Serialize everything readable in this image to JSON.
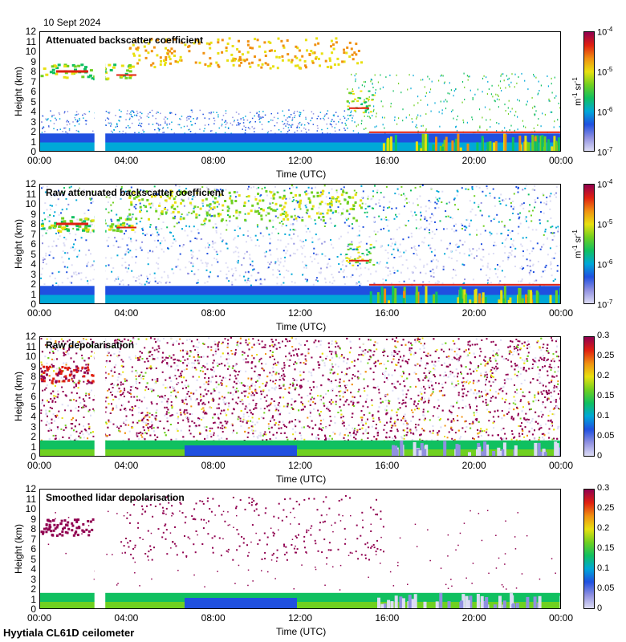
{
  "header": {
    "date": "10 Sept 2024"
  },
  "footer": {
    "label": "Hyytiala CL61D ceilometer"
  },
  "axes": {
    "ylabel": "Height (km)",
    "xlabel": "Time (UTC)",
    "yticks": [
      "0",
      "1",
      "2",
      "3",
      "4",
      "5",
      "6",
      "7",
      "8",
      "9",
      "10",
      "11",
      "12"
    ],
    "xticks": [
      "00:00",
      "04:00",
      "08:00",
      "12:00",
      "16:00",
      "20:00",
      "00:00"
    ]
  },
  "colors": {
    "scale": [
      "#dcdcf4",
      "#9090e0",
      "#2050e0",
      "#00a8d8",
      "#10c060",
      "#70d020",
      "#e8e010",
      "#f09010",
      "#e02010",
      "#900050"
    ],
    "background": "#ffffff"
  },
  "chart_data": [
    {
      "type": "heatmap",
      "title": "Attenuated backscatter coefficient",
      "xlabel": "Time (UTC)",
      "ylabel": "Height (km)",
      "xlim": [
        "00:00",
        "00:00"
      ],
      "ylim": [
        0,
        12
      ],
      "colorbar": {
        "scale": "log",
        "range": [
          1e-07,
          0.0001
        ],
        "unit_base": "m",
        "unit_exp": "-1",
        "unit_base2": "sr",
        "unit_exp2": "-1",
        "ticks": [
          {
            "base": "10",
            "exp": "-4"
          },
          {
            "base": "10",
            "exp": "-5"
          },
          {
            "base": "10",
            "exp": "-6"
          },
          {
            "base": "10",
            "exp": "-7"
          }
        ]
      },
      "data_gap": [
        "02:30",
        "03:00"
      ],
      "features": [
        {
          "name": "boundary layer",
          "time": [
            "00:00",
            "24:00"
          ],
          "height_km": [
            0,
            2
          ]
        },
        {
          "name": "mid-level cloud",
          "time": [
            "00:00",
            "04:00"
          ],
          "height_km": [
            7.5,
            8.7
          ]
        },
        {
          "name": "upper cloud",
          "time": [
            "04:00",
            "14:30"
          ],
          "height_km": [
            8,
            11.5
          ]
        },
        {
          "name": "descending cloud",
          "time": [
            "14:00",
            "15:00"
          ],
          "height_km": [
            4,
            6
          ]
        }
      ]
    },
    {
      "type": "heatmap",
      "title": "Raw attenuated backscatter coefficient",
      "xlabel": "Time (UTC)",
      "ylabel": "Height (km)",
      "xlim": [
        "00:00",
        "00:00"
      ],
      "ylim": [
        0,
        12
      ],
      "colorbar": {
        "scale": "log",
        "range": [
          1e-07,
          0.0001
        ],
        "unit_base": "m",
        "unit_exp": "-1",
        "unit_base2": "sr",
        "unit_exp2": "-1",
        "ticks": [
          {
            "base": "10",
            "exp": "-4"
          },
          {
            "base": "10",
            "exp": "-5"
          },
          {
            "base": "10",
            "exp": "-6"
          },
          {
            "base": "10",
            "exp": "-7"
          }
        ]
      },
      "data_gap": [
        "02:30",
        "03:00"
      ]
    },
    {
      "type": "heatmap",
      "title": "Raw depolarisation",
      "xlabel": "Time (UTC)",
      "ylabel": "Height (km)",
      "xlim": [
        "00:00",
        "00:00"
      ],
      "ylim": [
        0,
        12
      ],
      "colorbar": {
        "scale": "linear",
        "range": [
          0,
          0.3
        ],
        "ticks": [
          "0.3",
          "0.25",
          "0.2",
          "0.15",
          "0.1",
          "0.05",
          "0"
        ]
      },
      "data_gap": [
        "02:30",
        "03:00"
      ]
    },
    {
      "type": "heatmap",
      "title": "Smoothed lidar depolarisation",
      "xlabel": "Time (UTC)",
      "ylabel": "Height (km)",
      "xlim": [
        "00:00",
        "00:00"
      ],
      "ylim": [
        0,
        12
      ],
      "colorbar": {
        "scale": "linear",
        "range": [
          0,
          0.3
        ],
        "ticks": [
          "0.3",
          "0.25",
          "0.2",
          "0.15",
          "0.1",
          "0.05",
          "0"
        ]
      },
      "data_gap": [
        "02:30",
        "03:00"
      ]
    }
  ]
}
